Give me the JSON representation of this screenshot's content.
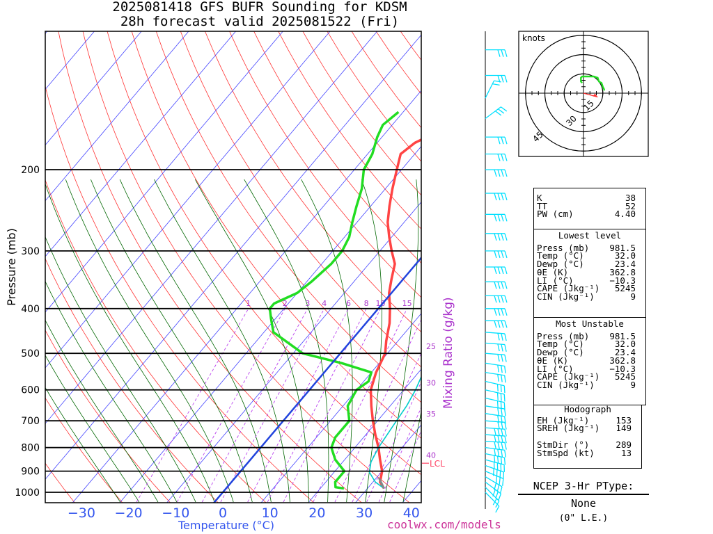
{
  "title_line1": "2025081418 GFS BUFR Sounding for KDSM",
  "title_line2": "28h forecast valid 2025081522 (Fri)",
  "chart_data": {
    "type": "line",
    "xlabel": "Temperature (°C)",
    "ylabel": "Pressure (mb)",
    "x_ticks": [
      -30,
      -20,
      -10,
      0,
      10,
      20,
      30,
      40
    ],
    "y_ticks": [
      200,
      300,
      400,
      500,
      600,
      700,
      800,
      900,
      1000
    ],
    "y_scale": "log",
    "mixing_ratio_label": "Mixing Ratio (g/kg)",
    "mixing_ratio_ticks": [
      "1",
      "2",
      "3",
      "4",
      "6",
      "8",
      "10",
      "15",
      "20",
      "25",
      "30",
      "35",
      "40"
    ],
    "lcl_label": "LCL",
    "series": [
      {
        "name": "Temperature",
        "color": "#ff4444",
        "points": [
          [
            33.5,
            981
          ],
          [
            31.5,
            950
          ],
          [
            30,
            900
          ],
          [
            27.5,
            850
          ],
          [
            25,
            800
          ],
          [
            22,
            750
          ],
          [
            19,
            700
          ],
          [
            16,
            650
          ],
          [
            13,
            600
          ],
          [
            11,
            550
          ],
          [
            9.5,
            500
          ],
          [
            7.5,
            470
          ],
          [
            5,
            430
          ],
          [
            2.5,
            400
          ],
          [
            -0.5,
            370
          ],
          [
            -2.5,
            345
          ],
          [
            -4.5,
            320
          ],
          [
            -7.5,
            300
          ],
          [
            -10.5,
            280
          ],
          [
            -13.5,
            260
          ],
          [
            -16,
            240
          ],
          [
            -18.5,
            220
          ],
          [
            -21,
            200
          ],
          [
            -23,
            185
          ],
          [
            -22,
            175
          ],
          [
            -19,
            165
          ],
          [
            -19,
            160
          ],
          [
            -17,
            155
          ],
          [
            -13.5,
            140
          ],
          [
            -8,
            130
          ],
          [
            -3.5,
            125
          ],
          [
            0.5,
            120
          ],
          [
            3,
            117
          ],
          [
            5,
            115
          ]
        ]
      },
      {
        "name": "Dewpoint",
        "color": "#22dd22",
        "points": [
          [
            25,
            981
          ],
          [
            23,
            975
          ],
          [
            22,
            950
          ],
          [
            22,
            900
          ],
          [
            18,
            850
          ],
          [
            15,
            800
          ],
          [
            14,
            760
          ],
          [
            14,
            700
          ],
          [
            11,
            650
          ],
          [
            10,
            600
          ],
          [
            11,
            575
          ],
          [
            10,
            550
          ],
          [
            2,
            525
          ],
          [
            -8,
            500
          ],
          [
            -18,
            450
          ],
          [
            -21,
            420
          ],
          [
            -23,
            400
          ],
          [
            -23,
            390
          ],
          [
            -20,
            370
          ],
          [
            -19,
            350
          ],
          [
            -18,
            320
          ],
          [
            -18,
            300
          ],
          [
            -19,
            280
          ],
          [
            -21,
            260
          ],
          [
            -23,
            240
          ],
          [
            -25,
            220
          ],
          [
            -28,
            200
          ],
          [
            -29,
            185
          ],
          [
            -31,
            170
          ],
          [
            -32,
            160
          ],
          [
            -31,
            150
          ]
        ]
      },
      {
        "name": "Parcel",
        "color": "#00cccc",
        "points": [
          [
            33.5,
            981
          ],
          [
            30.5,
            950
          ],
          [
            27.5,
            905
          ],
          [
            26,
            860
          ],
          [
            25,
            800
          ],
          [
            24,
            700
          ],
          [
            23.5,
            650
          ],
          [
            22.5,
            600
          ],
          [
            21,
            550
          ],
          [
            19.5,
            500
          ],
          [
            17.5,
            450
          ],
          [
            15,
            400
          ],
          [
            12,
            360
          ],
          [
            8.5,
            320
          ],
          [
            6,
            300
          ],
          [
            2,
            270
          ],
          [
            -3,
            240
          ],
          [
            -8,
            210
          ],
          [
            -11,
            195
          ],
          [
            -14,
            180
          ],
          [
            -16,
            170
          ],
          [
            -19,
            155
          ],
          [
            -23,
            140
          ],
          [
            -26,
            130
          ],
          [
            -29,
            120
          ],
          [
            -31,
            115
          ]
        ]
      }
    ],
    "wind_barbs": [
      {
        "p": 1000,
        "u": -4,
        "v": 4
      },
      {
        "p": 975,
        "u": -6,
        "v": 6
      },
      {
        "p": 950,
        "u": -8,
        "v": 6
      },
      {
        "p": 925,
        "u": -10,
        "v": 6
      },
      {
        "p": 900,
        "u": -12,
        "v": 5
      },
      {
        "p": 875,
        "u": -14,
        "v": 5
      },
      {
        "p": 850,
        "u": -15,
        "v": 4
      },
      {
        "p": 825,
        "u": -15,
        "v": 3
      },
      {
        "p": 800,
        "u": -15,
        "v": 2
      },
      {
        "p": 775,
        "u": -15,
        "v": 1
      },
      {
        "p": 750,
        "u": -14,
        "v": 1
      },
      {
        "p": 725,
        "u": -14,
        "v": 1
      },
      {
        "p": 700,
        "u": -13,
        "v": 1
      },
      {
        "p": 675,
        "u": -13,
        "v": 2
      },
      {
        "p": 650,
        "u": -13,
        "v": 2
      },
      {
        "p": 625,
        "u": -13,
        "v": 3
      },
      {
        "p": 600,
        "u": -13,
        "v": 3
      },
      {
        "p": 575,
        "u": -13,
        "v": 3
      },
      {
        "p": 550,
        "u": -13,
        "v": 2
      },
      {
        "p": 525,
        "u": -13,
        "v": 2
      },
      {
        "p": 500,
        "u": -13,
        "v": 1
      },
      {
        "p": 475,
        "u": -13,
        "v": 1
      },
      {
        "p": 450,
        "u": -13,
        "v": 1
      },
      {
        "p": 425,
        "u": -14,
        "v": 0
      },
      {
        "p": 400,
        "u": -14,
        "v": 0
      },
      {
        "p": 375,
        "u": -14,
        "v": 0
      },
      {
        "p": 350,
        "u": -14,
        "v": 0
      },
      {
        "p": 325,
        "u": -14,
        "v": 0
      },
      {
        "p": 300,
        "u": -14,
        "v": 0
      },
      {
        "p": 275,
        "u": -14,
        "v": 0
      },
      {
        "p": 250,
        "u": -14,
        "v": 0
      },
      {
        "p": 225,
        "u": -14,
        "v": 0
      },
      {
        "p": 200,
        "u": -14,
        "v": 0
      },
      {
        "p": 185,
        "u": -13,
        "v": 0
      },
      {
        "p": 170,
        "u": -12,
        "v": 0
      },
      {
        "p": 155,
        "u": -8,
        "v": -6
      },
      {
        "p": 140,
        "u": -4,
        "v": -8
      },
      {
        "p": 125,
        "u": -10,
        "v": 0
      },
      {
        "p": 110,
        "u": -12,
        "v": 0
      }
    ],
    "hodograph": {
      "units_label": "knots",
      "ring_labels": [
        "15",
        "30",
        "45"
      ],
      "trace": [
        [
          -1,
          8
        ],
        [
          -2,
          9
        ],
        [
          -2,
          12
        ],
        [
          -1,
          13
        ],
        [
          3,
          13
        ],
        [
          8,
          13
        ],
        [
          11,
          12
        ],
        [
          12,
          9
        ],
        [
          14,
          8
        ],
        [
          15,
          5
        ],
        [
          16,
          3
        ],
        [
          16,
          2
        ]
      ],
      "storm_motion": [
        11,
        -3
      ]
    }
  },
  "indices": {
    "rows": [
      {
        "label": "K",
        "value": "38"
      },
      {
        "label": "TT",
        "value": "52"
      },
      {
        "label": "PW (cm)",
        "value": "4.40"
      }
    ]
  },
  "lowest_level": {
    "title": "Lowest level",
    "rows": [
      {
        "label": "Press (mb)",
        "value": "981.5"
      },
      {
        "label": "Temp (°C)",
        "value": "32.0"
      },
      {
        "label": "Dewp (°C)",
        "value": "23.4"
      },
      {
        "label": "θE (K)",
        "value": "362.8"
      },
      {
        "label": "LI (°C)",
        "value": "−10.3"
      },
      {
        "label": "CAPE (Jkg⁻¹)",
        "value": "5245"
      },
      {
        "label": "CIN (Jkg⁻¹)",
        "value": "9"
      }
    ]
  },
  "most_unstable": {
    "title": "Most Unstable",
    "rows": [
      {
        "label": "Press (mb)",
        "value": "981.5"
      },
      {
        "label": "Temp (°C)",
        "value": "32.0"
      },
      {
        "label": "Dewp (°C)",
        "value": "23.4"
      },
      {
        "label": "θE (K)",
        "value": "362.8"
      },
      {
        "label": "LI (°C)",
        "value": "−10.3"
      },
      {
        "label": "CAPE (Jkg⁻¹)",
        "value": "5245"
      },
      {
        "label": "CIN (Jkg⁻¹)",
        "value": "9"
      }
    ]
  },
  "hodograph_box": {
    "title": "Hodograph",
    "rows": [
      {
        "label": "EH (Jkg⁻¹)",
        "value": "153"
      },
      {
        "label": "SREH (Jkg⁻¹)",
        "value": "149"
      },
      {
        "label": "",
        "value": ""
      },
      {
        "label": "StmDir (°)",
        "value": "289"
      },
      {
        "label": "StmSpd (kt)",
        "value": "13"
      }
    ]
  },
  "ptype": {
    "title": "NCEP 3-Hr PType:",
    "value": "None",
    "note": "(0\" L.E.)"
  },
  "credit": "coolwx.com/models"
}
